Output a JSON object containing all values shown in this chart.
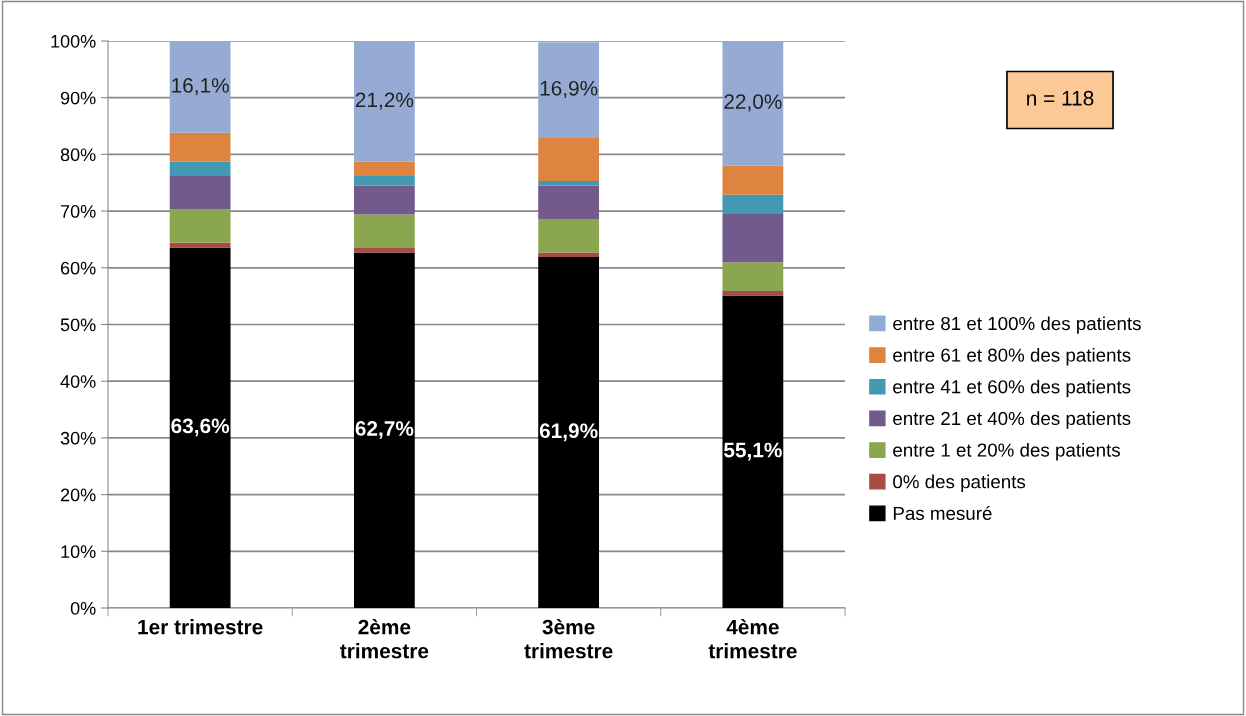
{
  "chart_data": {
    "type": "bar",
    "stacked": true,
    "categories": [
      "1er trimestre",
      "2ème trimestre",
      "3ème trimestre",
      "4ème trimestre"
    ],
    "ylim": [
      0,
      100
    ],
    "yticks": [
      {
        "value": 0,
        "label": "0%"
      },
      {
        "value": 10,
        "label": "10%"
      },
      {
        "value": 20,
        "label": "20%"
      },
      {
        "value": 30,
        "label": "30%"
      },
      {
        "value": 40,
        "label": "40%"
      },
      {
        "value": 50,
        "label": "50%"
      },
      {
        "value": 60,
        "label": "60%"
      },
      {
        "value": 70,
        "label": "70%"
      },
      {
        "value": 80,
        "label": "80%"
      },
      {
        "value": 90,
        "label": "90%"
      },
      {
        "value": 100,
        "label": "100%"
      }
    ],
    "grid": "y",
    "legend": "right",
    "annotations": [
      "n = 118"
    ],
    "series": [
      {
        "name": "Pas mesuré",
        "color": "#000000",
        "values": [
          63.6,
          62.7,
          61.9,
          55.1
        ],
        "value_labels": [
          "63,6%",
          "62,7%",
          "61,9%",
          "55,1%"
        ]
      },
      {
        "name": "0% des patients",
        "color": "#a84b47",
        "values": [
          0.8,
          0.8,
          0.8,
          0.8
        ]
      },
      {
        "name": "entre 1 et 20% des patients",
        "color": "#8aa64e",
        "values": [
          5.9,
          5.9,
          5.9,
          5.1
        ]
      },
      {
        "name": "entre 21 et 40% des patients",
        "color": "#725a8d",
        "values": [
          5.9,
          5.1,
          5.9,
          8.5
        ]
      },
      {
        "name": "entre 41 et 60% des patients",
        "color": "#4399b1",
        "values": [
          2.5,
          1.7,
          0.8,
          3.4
        ]
      },
      {
        "name": "entre 61 et 80% des patients",
        "color": "#dd8540",
        "values": [
          5.1,
          2.5,
          7.6,
          5.1
        ]
      },
      {
        "name": "entre 81 et 100% des patients",
        "color": "#95abd3",
        "values": [
          16.1,
          21.2,
          16.9,
          22.0
        ],
        "value_labels": [
          "16,1%",
          "21,2%",
          "16,9%",
          "22,0%"
        ]
      }
    ]
  }
}
